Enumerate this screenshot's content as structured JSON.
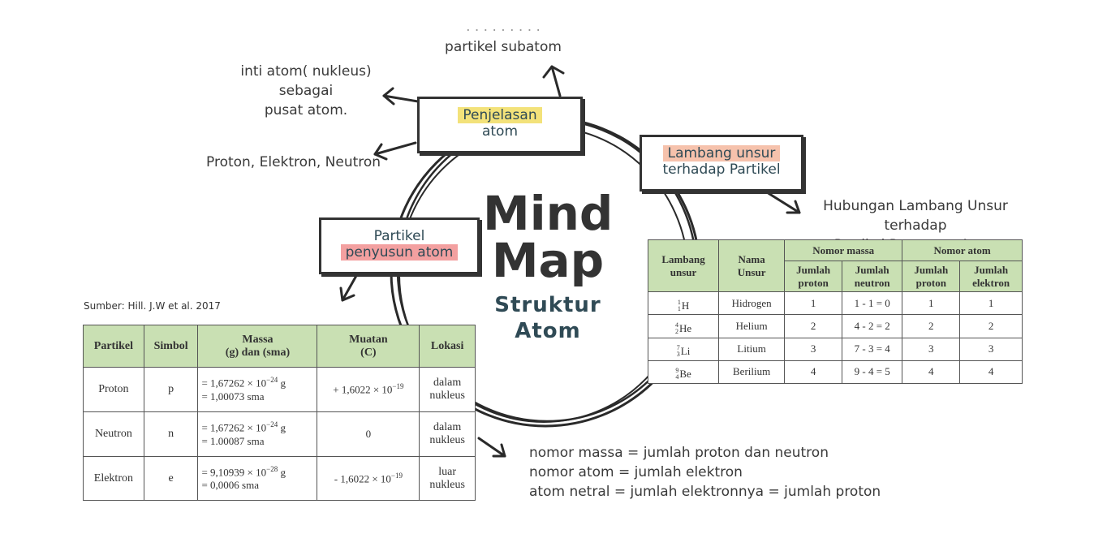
{
  "center": {
    "title_line1": "Mind",
    "title_line2": "Map",
    "subtitle_line1": "Struktur",
    "subtitle_line2": "Atom"
  },
  "nodes": {
    "penjelasan": {
      "line1": "Penjelasan",
      "line2": "atom",
      "highlight": "#f3e27a"
    },
    "lambang": {
      "line1": "Lambang unsur",
      "line2": "terhadap Partikel",
      "highlight": "#f6b59a"
    },
    "partikel": {
      "line1": "Partikel",
      "line2": "penyusun atom",
      "highlight": "#f3a0a0"
    }
  },
  "notes": {
    "subatom_partial": "partikel subatom",
    "nukleus_line1": "inti atom( nukleus) sebagai",
    "nukleus_line2": "pusat atom.",
    "pen": "Proton, Elektron, Neutron",
    "hubungan_line1": "Hubungan Lambang Unsur terhadap",
    "hubungan_line2": "Partikel Penyusun Atom",
    "rule1": "nomor massa = jumlah proton dan neutron",
    "rule2": "nomor atom = jumlah elektron",
    "rule3": "atom netral = jumlah elektronnya =  jumlah proton"
  },
  "source": "Sumber: Hill. J.W et al. 2017",
  "table_left": {
    "headers": [
      "Partikel",
      "Simbol",
      "Massa",
      "(g) dan (sma)",
      "Muatan",
      "(C)",
      "Lokasi"
    ],
    "rows": [
      {
        "partikel": "Proton",
        "simbol": "p",
        "massa_g_base": "= 1,67262 × 10",
        "massa_g_exp": "−24",
        "massa_g_unit": " g",
        "massa_sma": "= 1,00073 sma",
        "muatan_base": "+ 1,6022 × 10",
        "muatan_exp": "−19",
        "lokasi1": "dalam",
        "lokasi2": "nukleus"
      },
      {
        "partikel": "Neutron",
        "simbol": "n",
        "massa_g_base": "= 1,67262 × 10",
        "massa_g_exp": "−24",
        "massa_g_unit": " g",
        "massa_sma": "= 1.00087 sma",
        "muatan_base": "0",
        "muatan_exp": "",
        "lokasi1": "dalam",
        "lokasi2": "nukleus"
      },
      {
        "partikel": "Elektron",
        "simbol": "e",
        "massa_g_base": "= 9,10939 × 10",
        "massa_g_exp": "−28",
        "massa_g_unit": " g",
        "massa_sma": "= 0,0006 sma",
        "muatan_base": "- 1,6022 × 10",
        "muatan_exp": "−19",
        "lokasi1": "luar",
        "lokasi2": "nukleus"
      }
    ]
  },
  "table_right": {
    "h_lambang1": "Lambang",
    "h_lambang2": "unsur",
    "h_nama1": "Nama",
    "h_nama2": "Unsur",
    "h_massa": "Nomor massa",
    "h_atom": "Nomor atom",
    "h_jp": "Jumlah",
    "h_jp2": "proton",
    "h_jn": "Jumlah",
    "h_jn2": "neutron",
    "h_jp_b": "Jumlah",
    "h_jp_b2": "proton",
    "h_je": "Jumlah",
    "h_je2": "elektron",
    "rows": [
      {
        "mass": "1",
        "num": "1",
        "sym": "H",
        "nama": "Hidrogen",
        "jp": "1",
        "jn": "1 - 1 = 0",
        "ap": "1",
        "ae": "1"
      },
      {
        "mass": "4",
        "num": "2",
        "sym": "He",
        "nama": "Helium",
        "jp": "2",
        "jn": "4 - 2 = 2",
        "ap": "2",
        "ae": "2"
      },
      {
        "mass": "7",
        "num": "3",
        "sym": "Li",
        "nama": "Litium",
        "jp": "3",
        "jn": "7 - 3 = 4",
        "ap": "3",
        "ae": "3"
      },
      {
        "mass": "9",
        "num": "4",
        "sym": "Be",
        "nama": "Berilium",
        "jp": "4",
        "jn": "9 - 4 = 5",
        "ap": "4",
        "ae": "4"
      }
    ]
  }
}
